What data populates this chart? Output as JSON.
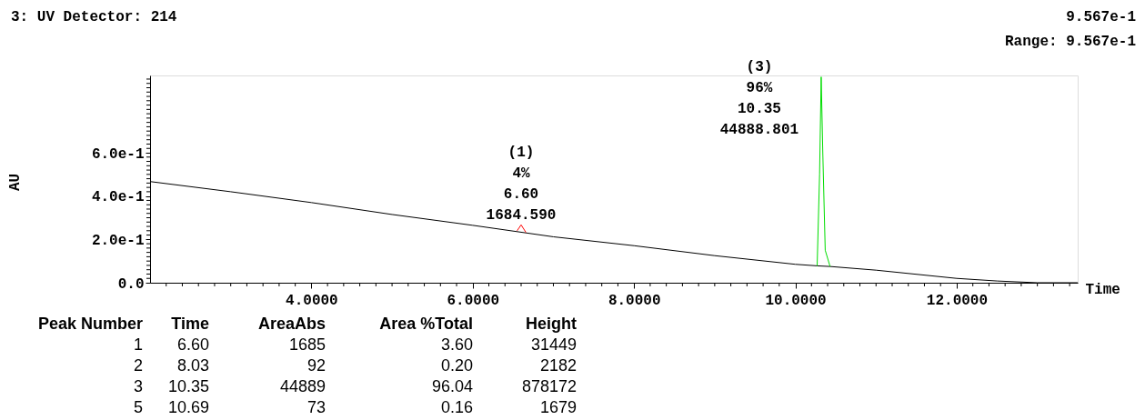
{
  "chart_data": {
    "type": "line",
    "title": "3: UV Detector: 214",
    "xlabel": "Time",
    "ylabel": "AU",
    "xlim": [
      2.0,
      13.5
    ],
    "ylim": [
      0,
      0.9567
    ],
    "xticks": [
      {
        "value": 2.2,
        "label": null
      },
      {
        "value": 2.4,
        "label": null
      },
      {
        "value": 2.6,
        "label": null
      },
      {
        "value": 2.8,
        "label": null
      },
      {
        "value": 3.0,
        "label": null
      },
      {
        "value": 3.2,
        "label": null
      },
      {
        "value": 3.4,
        "label": null
      },
      {
        "value": 3.6,
        "label": null
      },
      {
        "value": 3.8,
        "label": null
      },
      {
        "value": 4,
        "label": "4.0000"
      },
      {
        "value": 4.2,
        "label": null
      },
      {
        "value": 4.4,
        "label": null
      },
      {
        "value": 4.6,
        "label": null
      },
      {
        "value": 4.8,
        "label": null
      },
      {
        "value": 5.0,
        "label": null
      },
      {
        "value": 5.2,
        "label": null
      },
      {
        "value": 5.4,
        "label": null
      },
      {
        "value": 5.6,
        "label": null
      },
      {
        "value": 5.8,
        "label": null
      },
      {
        "value": 6,
        "label": "6.0000"
      },
      {
        "value": 6.2,
        "label": null
      },
      {
        "value": 6.4,
        "label": null
      },
      {
        "value": 6.6,
        "label": null
      },
      {
        "value": 6.8,
        "label": null
      },
      {
        "value": 7.0,
        "label": null
      },
      {
        "value": 7.2,
        "label": null
      },
      {
        "value": 7.4,
        "label": null
      },
      {
        "value": 7.6,
        "label": null
      },
      {
        "value": 7.8,
        "label": null
      },
      {
        "value": 8,
        "label": "8.0000"
      },
      {
        "value": 8.2,
        "label": null
      },
      {
        "value": 8.4,
        "label": null
      },
      {
        "value": 8.6,
        "label": null
      },
      {
        "value": 8.8,
        "label": null
      },
      {
        "value": 9.0,
        "label": null
      },
      {
        "value": 9.2,
        "label": null
      },
      {
        "value": 9.4,
        "label": null
      },
      {
        "value": 9.6,
        "label": null
      },
      {
        "value": 9.8,
        "label": null
      },
      {
        "value": 10,
        "label": "10.0000"
      },
      {
        "value": 10.2,
        "label": null
      },
      {
        "value": 10.4,
        "label": null
      },
      {
        "value": 10.6,
        "label": null
      },
      {
        "value": 10.8,
        "label": null
      },
      {
        "value": 11.0,
        "label": null
      },
      {
        "value": 11.2,
        "label": null
      },
      {
        "value": 11.4,
        "label": null
      },
      {
        "value": 11.6,
        "label": null
      },
      {
        "value": 11.8,
        "label": null
      },
      {
        "value": 12,
        "label": "12.0000"
      },
      {
        "value": 12.2,
        "label": null
      },
      {
        "value": 12.4,
        "label": null
      },
      {
        "value": 12.6,
        "label": null
      },
      {
        "value": 12.8,
        "label": null
      },
      {
        "value": 13.0,
        "label": null
      },
      {
        "value": 13.2,
        "label": null
      },
      {
        "value": 13.4,
        "label": null
      }
    ],
    "yticks": [
      {
        "value": 0,
        "label": "0.0"
      },
      {
        "value": 0.02,
        "label": null
      },
      {
        "value": 0.04,
        "label": null
      },
      {
        "value": 0.06,
        "label": null
      },
      {
        "value": 0.08,
        "label": null
      },
      {
        "value": 0.1,
        "label": null
      },
      {
        "value": 0.12,
        "label": null
      },
      {
        "value": 0.14,
        "label": null
      },
      {
        "value": 0.16,
        "label": null
      },
      {
        "value": 0.18,
        "label": null
      },
      {
        "value": 0.2,
        "label": "2.0e-1"
      },
      {
        "value": 0.22,
        "label": null
      },
      {
        "value": 0.24,
        "label": null
      },
      {
        "value": 0.26,
        "label": null
      },
      {
        "value": 0.28,
        "label": null
      },
      {
        "value": 0.3,
        "label": null
      },
      {
        "value": 0.32,
        "label": null
      },
      {
        "value": 0.34,
        "label": null
      },
      {
        "value": 0.36,
        "label": null
      },
      {
        "value": 0.38,
        "label": null
      },
      {
        "value": 0.4,
        "label": "4.0e-1"
      },
      {
        "value": 0.42,
        "label": null
      },
      {
        "value": 0.44,
        "label": null
      },
      {
        "value": 0.46,
        "label": null
      },
      {
        "value": 0.48,
        "label": null
      },
      {
        "value": 0.5,
        "label": null
      },
      {
        "value": 0.52,
        "label": null
      },
      {
        "value": 0.54,
        "label": null
      },
      {
        "value": 0.56,
        "label": null
      },
      {
        "value": 0.58,
        "label": null
      },
      {
        "value": 0.6,
        "label": "6.0e-1"
      },
      {
        "value": 0.62,
        "label": null
      },
      {
        "value": 0.64,
        "label": null
      },
      {
        "value": 0.66,
        "label": null
      },
      {
        "value": 0.68,
        "label": null
      },
      {
        "value": 0.7,
        "label": null
      },
      {
        "value": 0.72,
        "label": null
      },
      {
        "value": 0.74,
        "label": null
      },
      {
        "value": 0.76,
        "label": null
      },
      {
        "value": 0.78,
        "label": null
      },
      {
        "value": 0.8,
        "label": null
      },
      {
        "value": 0.82,
        "label": null
      },
      {
        "value": 0.84,
        "label": null
      },
      {
        "value": 0.86,
        "label": null
      },
      {
        "value": 0.88,
        "label": null
      },
      {
        "value": 0.9,
        "label": null
      },
      {
        "value": 0.92,
        "label": null
      },
      {
        "value": 0.94,
        "label": null
      }
    ],
    "series": [
      {
        "color": "#000000",
        "x": [
          2.0,
          3.0,
          4.0,
          5.0,
          6.0,
          7.0,
          8.0,
          9.0,
          10.0,
          10.27,
          10.43,
          11.0,
          12.0,
          12.5,
          13.0,
          13.5
        ],
        "values": [
          0.467,
          0.42,
          0.37,
          0.315,
          0.265,
          0.212,
          0.171,
          0.125,
          0.085,
          0.078,
          0.075,
          0.058,
          0.02,
          0.008,
          0.0,
          0.0
        ]
      },
      {
        "color": "#ff0000",
        "x": [
          6.55,
          6.6,
          6.66
        ],
        "values": [
          0.24,
          0.267,
          0.232
        ]
      },
      {
        "color": "#00dd00",
        "x": [
          10.27,
          10.3,
          10.32,
          10.34,
          10.37,
          10.43
        ],
        "values": [
          0.078,
          0.5,
          0.95,
          0.6,
          0.15,
          0.075
        ]
      }
    ],
    "annotations": [
      "9.567e-1",
      "Range: 9.567e-1",
      {
        "text": "(1)\n4%\n6.60\n1684.590",
        "x": 6.6,
        "y": 0.267
      },
      {
        "text": "(3)\n96%\n10.35\n44888.801",
        "x": 10.32,
        "y": 0.95
      },
      "Peak Number",
      "Time",
      "AreaAbs",
      "Area %Total",
      "Height",
      "1",
      "6.60",
      "1685",
      "3.60",
      "31449",
      "2",
      "8.03",
      "92",
      "0.20",
      "2182",
      "3",
      "10.35",
      "44889",
      "96.04",
      "878172",
      "5",
      "10.69",
      "73",
      "0.16",
      "1679"
    ],
    "grid": false,
    "line_style": "solid"
  }
}
